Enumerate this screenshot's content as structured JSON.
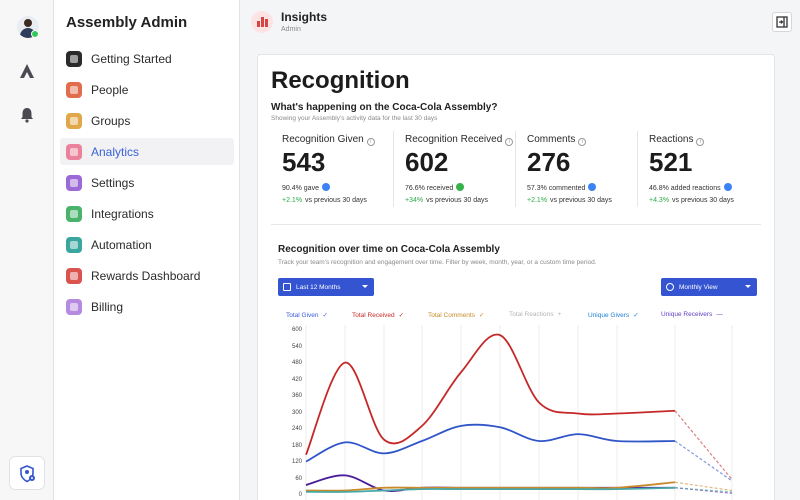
{
  "sidebar": {
    "title": "Assembly Admin",
    "items": [
      {
        "label": "Getting Started",
        "color": "#2b2b2b",
        "active": false
      },
      {
        "label": "People",
        "color": "#e26d4e",
        "active": false
      },
      {
        "label": "Groups",
        "color": "#e0a84a",
        "active": false
      },
      {
        "label": "Analytics",
        "color": "#e9829a",
        "active": true
      },
      {
        "label": "Settings",
        "color": "#9b6ad6",
        "active": false
      },
      {
        "label": "Integrations",
        "color": "#49b36b",
        "active": false
      },
      {
        "label": "Automation",
        "color": "#3aa6a0",
        "active": false
      },
      {
        "label": "Rewards Dashboard",
        "color": "#d9534f",
        "active": false
      },
      {
        "label": "Billing",
        "color": "#b58ae0",
        "active": false
      }
    ]
  },
  "header": {
    "title": "Insights",
    "subtitle": "Admin"
  },
  "page": {
    "title": "Recognition",
    "question": "What's happening on the Coca-Cola Assembly?",
    "subtitle": "Showing your Assembly's activity data for the last 30 days"
  },
  "stats": [
    {
      "label": "Recognition Given",
      "value": "543",
      "pct": "90.4% gave",
      "badge_color": "#3b82f6",
      "change": "+2.1%",
      "change_text": "vs previous 30 days"
    },
    {
      "label": "Recognition Received",
      "value": "602",
      "pct": "76.6% received",
      "badge_color": "#35b24a",
      "change": "+34%",
      "change_text": "vs previous 30 days"
    },
    {
      "label": "Comments",
      "value": "276",
      "pct": "57.3% commented",
      "badge_color": "#3b82f6",
      "change": "+2.1%",
      "change_text": "vs previous 30 days"
    },
    {
      "label": "Reactions",
      "value": "521",
      "pct": "46.8% added reactions",
      "badge_color": "#3b82f6",
      "change": "+4.3%",
      "change_text": "vs previous 30 days"
    }
  ],
  "chart_section": {
    "title": "Recognition over time on Coca-Cola Assembly",
    "subtitle": "Track your team's recognition and engagement over time. Filter by week, month, year, or a custom time period.",
    "range_dropdown": "Last 12 Months",
    "view_dropdown": "Monthly View"
  },
  "legend": [
    {
      "label": "Total Given",
      "color": "#3b5bdb",
      "mark": "✓"
    },
    {
      "label": "Total Received",
      "color": "#c92a2a",
      "mark": "✓"
    },
    {
      "label": "Total Comments",
      "color": "#c98a2a",
      "mark": "✓"
    },
    {
      "label": "Total Reactions",
      "color": "#b5b5b5",
      "mark": "+"
    },
    {
      "label": "Unique Givers",
      "color": "#1c7ed6",
      "mark": "✓"
    },
    {
      "label": "Unique Receivers",
      "color": "#5f3dc4",
      "mark": "—"
    }
  ],
  "chart_data": {
    "type": "line",
    "yticks": [
      0,
      60,
      120,
      180,
      240,
      300,
      360,
      420,
      480,
      540,
      600
    ],
    "ylim": [
      0,
      600
    ],
    "series": [
      {
        "name": "Total Received",
        "color": "#c62828",
        "values": [
          150,
          485,
          205,
          255,
          450,
          585,
          340,
          300,
          300,
          310,
          60
        ],
        "dashed_from": 9
      },
      {
        "name": "Total Given",
        "color": "#2f55c9",
        "values": [
          125,
          195,
          155,
          200,
          255,
          250,
          200,
          225,
          200,
          200,
          55
        ],
        "dashed_from": 9
      },
      {
        "name": "Unique Receivers",
        "color": "#4a1c9a",
        "values": [
          40,
          75,
          20,
          30,
          30,
          30,
          30,
          30,
          30,
          30,
          10
        ],
        "dashed_from": 9
      },
      {
        "name": "Total Comments",
        "color": "#c98a2a",
        "values": [
          20,
          20,
          30,
          30,
          30,
          30,
          30,
          30,
          30,
          50,
          20
        ],
        "dashed_from": 9
      },
      {
        "name": "Unique Givers",
        "color": "#4aa8a8",
        "values": [
          15,
          15,
          20,
          25,
          25,
          25,
          25,
          25,
          25,
          30,
          15
        ],
        "dashed_from": 9
      }
    ]
  }
}
